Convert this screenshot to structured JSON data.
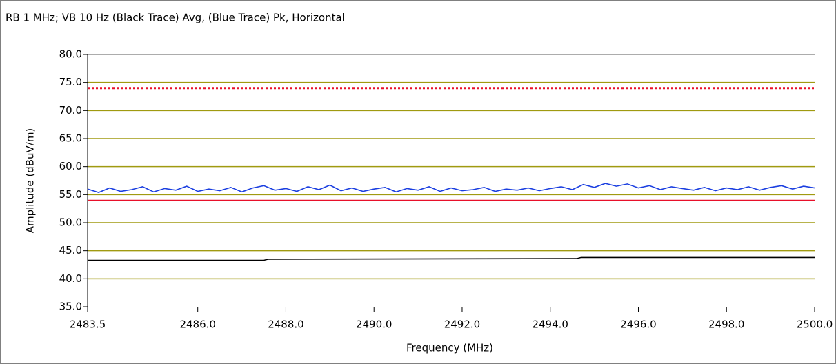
{
  "chart_data": {
    "type": "line",
    "title": "RB 1 MHz; VB 10 Hz (Black Trace) Avg, (Blue Trace) Pk, Horizontal",
    "xlabel": "Frequency (MHz)",
    "ylabel": "Amplitude (dBuV/m)",
    "xlim": [
      2483.5,
      2500
    ],
    "ylim": [
      35,
      80
    ],
    "xticks": [
      {
        "value": 2483.5,
        "label": "2483.5"
      },
      {
        "value": 2486,
        "label": "2486.0"
      },
      {
        "value": 2488,
        "label": "2488.0"
      },
      {
        "value": 2490,
        "label": "2490.0"
      },
      {
        "value": 2492,
        "label": "2492.0"
      },
      {
        "value": 2494,
        "label": "2494.0"
      },
      {
        "value": 2496,
        "label": "2496.0"
      },
      {
        "value": 2498,
        "label": "2498.0"
      },
      {
        "value": 2500,
        "label": "2500.0"
      }
    ],
    "yticks": [
      {
        "value": 35,
        "label": "35.0"
      },
      {
        "value": 40,
        "label": "40.0"
      },
      {
        "value": 45,
        "label": "45.0"
      },
      {
        "value": 50,
        "label": "50.0"
      },
      {
        "value": 55,
        "label": "55.0"
      },
      {
        "value": 60,
        "label": "60.0"
      },
      {
        "value": 65,
        "label": "65.0"
      },
      {
        "value": 70,
        "label": "70.0"
      },
      {
        "value": 75,
        "label": "75.0"
      },
      {
        "value": 80,
        "label": "80.0"
      }
    ],
    "grid": true,
    "grid_color": "#a09a10",
    "series": [
      {
        "color": "#e8102a",
        "style": "dotted",
        "x": [
          2483.5,
          2500
        ],
        "values": [
          74,
          74
        ]
      },
      {
        "color": "#e8102a",
        "style": "solid",
        "x": [
          2483.5,
          2500
        ],
        "values": [
          54,
          54
        ]
      },
      {
        "color": "#1a3ee0",
        "style": "solid",
        "x": [
          2483.5,
          2483.75,
          2484,
          2484.25,
          2484.5,
          2484.75,
          2485,
          2485.25,
          2485.5,
          2485.75,
          2486,
          2486.25,
          2486.5,
          2486.75,
          2487,
          2487.25,
          2487.5,
          2487.75,
          2488,
          2488.25,
          2488.5,
          2488.75,
          2489,
          2489.25,
          2489.5,
          2489.75,
          2490,
          2490.25,
          2490.5,
          2490.75,
          2491,
          2491.25,
          2491.5,
          2491.75,
          2492,
          2492.25,
          2492.5,
          2492.75,
          2493,
          2493.25,
          2493.5,
          2493.75,
          2494,
          2494.25,
          2494.5,
          2494.75,
          2495,
          2495.25,
          2495.5,
          2495.75,
          2496,
          2496.25,
          2496.5,
          2496.75,
          2497,
          2497.25,
          2497.5,
          2497.75,
          2498,
          2498.25,
          2498.5,
          2498.75,
          2499,
          2499.25,
          2499.5,
          2499.75,
          2500
        ],
        "values": [
          56.0,
          55.4,
          56.2,
          55.6,
          55.9,
          56.4,
          55.5,
          56.1,
          55.8,
          56.5,
          55.6,
          56.0,
          55.7,
          56.3,
          55.5,
          56.2,
          56.6,
          55.8,
          56.1,
          55.6,
          56.4,
          55.9,
          56.7,
          55.7,
          56.2,
          55.6,
          56.0,
          56.3,
          55.5,
          56.1,
          55.8,
          56.4,
          55.6,
          56.2,
          55.7,
          55.9,
          56.3,
          55.6,
          56.0,
          55.8,
          56.2,
          55.7,
          56.1,
          56.4,
          55.9,
          56.8,
          56.3,
          57.0,
          56.5,
          56.9,
          56.2,
          56.6,
          55.9,
          56.4,
          56.1,
          55.8,
          56.3,
          55.7,
          56.2,
          55.9,
          56.4,
          55.8,
          56.3,
          56.6,
          56.0,
          56.5,
          56.2
        ]
      },
      {
        "color": "#000000",
        "style": "solid",
        "x": [
          2483.5,
          2487.5,
          2487.6,
          2494.6,
          2494.7,
          2500
        ],
        "values": [
          43.3,
          43.3,
          43.5,
          43.6,
          43.8,
          43.8
        ]
      }
    ]
  }
}
